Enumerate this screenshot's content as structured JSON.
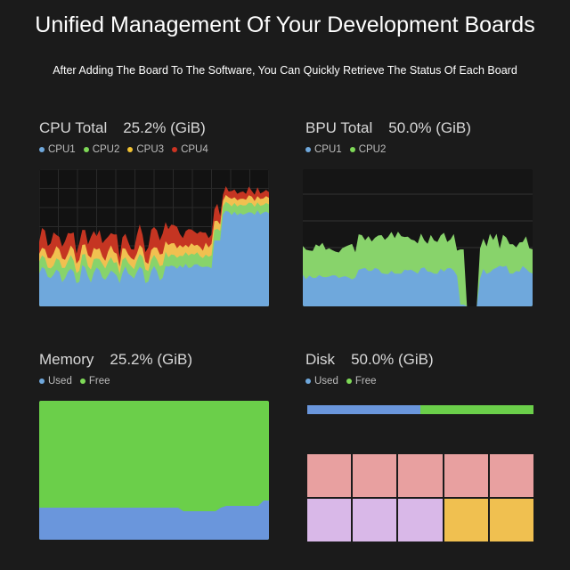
{
  "header": {
    "title": "Unified Management Of Your Development Boards",
    "subtitle": "After Adding The Board To The Software, You Can Quickly Retrieve The Status Of Each Board"
  },
  "panels": {
    "cpu": {
      "title": "CPU Total",
      "value": "25.2% (GiB)",
      "legend": [
        {
          "label": "CPU1",
          "color": "#6fa8dc"
        },
        {
          "label": "CPU2",
          "color": "#7ed957"
        },
        {
          "label": "CPU3",
          "color": "#f1c232"
        },
        {
          "label": "CPU4",
          "color": "#cc3322"
        }
      ]
    },
    "bpu": {
      "title": "BPU Total",
      "value": "50.0% (GiB)",
      "legend": [
        {
          "label": "CPU1",
          "color": "#6fa8dc"
        },
        {
          "label": "CPU2",
          "color": "#7ed957"
        }
      ]
    },
    "memory": {
      "title": "Memory",
      "value": "25.2% (GiB)",
      "legend": [
        {
          "label": "Used",
          "color": "#6fa8dc"
        },
        {
          "label": "Free",
          "color": "#7ed957"
        }
      ]
    },
    "disk": {
      "title": "Disk",
      "value": "50.0% (GiB)",
      "legend": [
        {
          "label": "Used",
          "color": "#6fa8dc"
        },
        {
          "label": "Free",
          "color": "#7ed957"
        }
      ],
      "used_fraction": 0.5,
      "block_colors": [
        "#e8a0a0",
        "#e8a0a0",
        "#e8a0a0",
        "#e8a0a0",
        "#e8a0a0",
        "#d9b8e8",
        "#d9b8e8",
        "#d9b8e8",
        "#f0c050",
        "#f0c050"
      ]
    }
  },
  "colors": {
    "used": "#6a96dc",
    "free": "#6bcf4a",
    "cpu1": "#6fa8dc",
    "cpu2": "#88d36b",
    "cpu3": "#f1c050",
    "cpu4": "#c53522"
  }
}
